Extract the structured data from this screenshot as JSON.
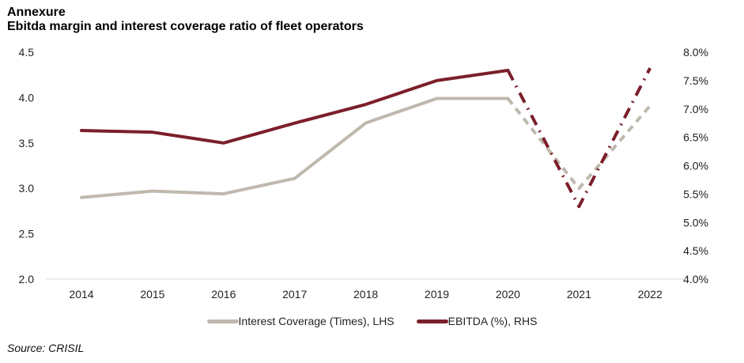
{
  "header": {
    "title": "Annexure",
    "subtitle": "Ebitda margin and interest coverage ratio of fleet operators"
  },
  "source": "Source: CRISIL",
  "colors": {
    "interest_coverage": "#bfb8ad",
    "ebitda": "#7b1f2b",
    "axis": "#d9d9d9"
  },
  "chart_data": {
    "type": "line",
    "title": "Ebitda margin and interest coverage ratio of fleet operators",
    "categories": [
      "2014",
      "2015",
      "2016",
      "2017",
      "2018",
      "2019",
      "2020",
      "2021",
      "2022"
    ],
    "series": [
      {
        "name": "Interest Coverage (Times), LHS",
        "axis": "left",
        "values": [
          2.9,
          2.97,
          2.94,
          3.11,
          3.72,
          3.99,
          3.99,
          3.0,
          3.91
        ],
        "style": "solid through 2020, dashed for 2021-2022 (projection)"
      },
      {
        "name": "EBITDA (%), RHS",
        "axis": "right",
        "values": [
          6.62,
          6.59,
          6.4,
          6.75,
          7.08,
          7.5,
          7.68,
          5.28,
          7.72
        ],
        "style": "solid through 2020, dash-dot for 2021-2022 (projection)"
      }
    ],
    "left_axis": {
      "label": "",
      "ylim": [
        2.0,
        4.5
      ],
      "ticks": [
        "2.0",
        "2.5",
        "3.0",
        "3.5",
        "4.0",
        "4.5"
      ]
    },
    "right_axis": {
      "label": "",
      "ylim": [
        4.0,
        8.0
      ],
      "ticks": [
        "4.0%",
        "4.5%",
        "5.0%",
        "5.5%",
        "6.0%",
        "6.5%",
        "7.0%",
        "7.5%",
        "8.0%"
      ]
    },
    "xlabel": "",
    "grid": false,
    "legend": "bottom-center",
    "projection_start_index": 6
  }
}
